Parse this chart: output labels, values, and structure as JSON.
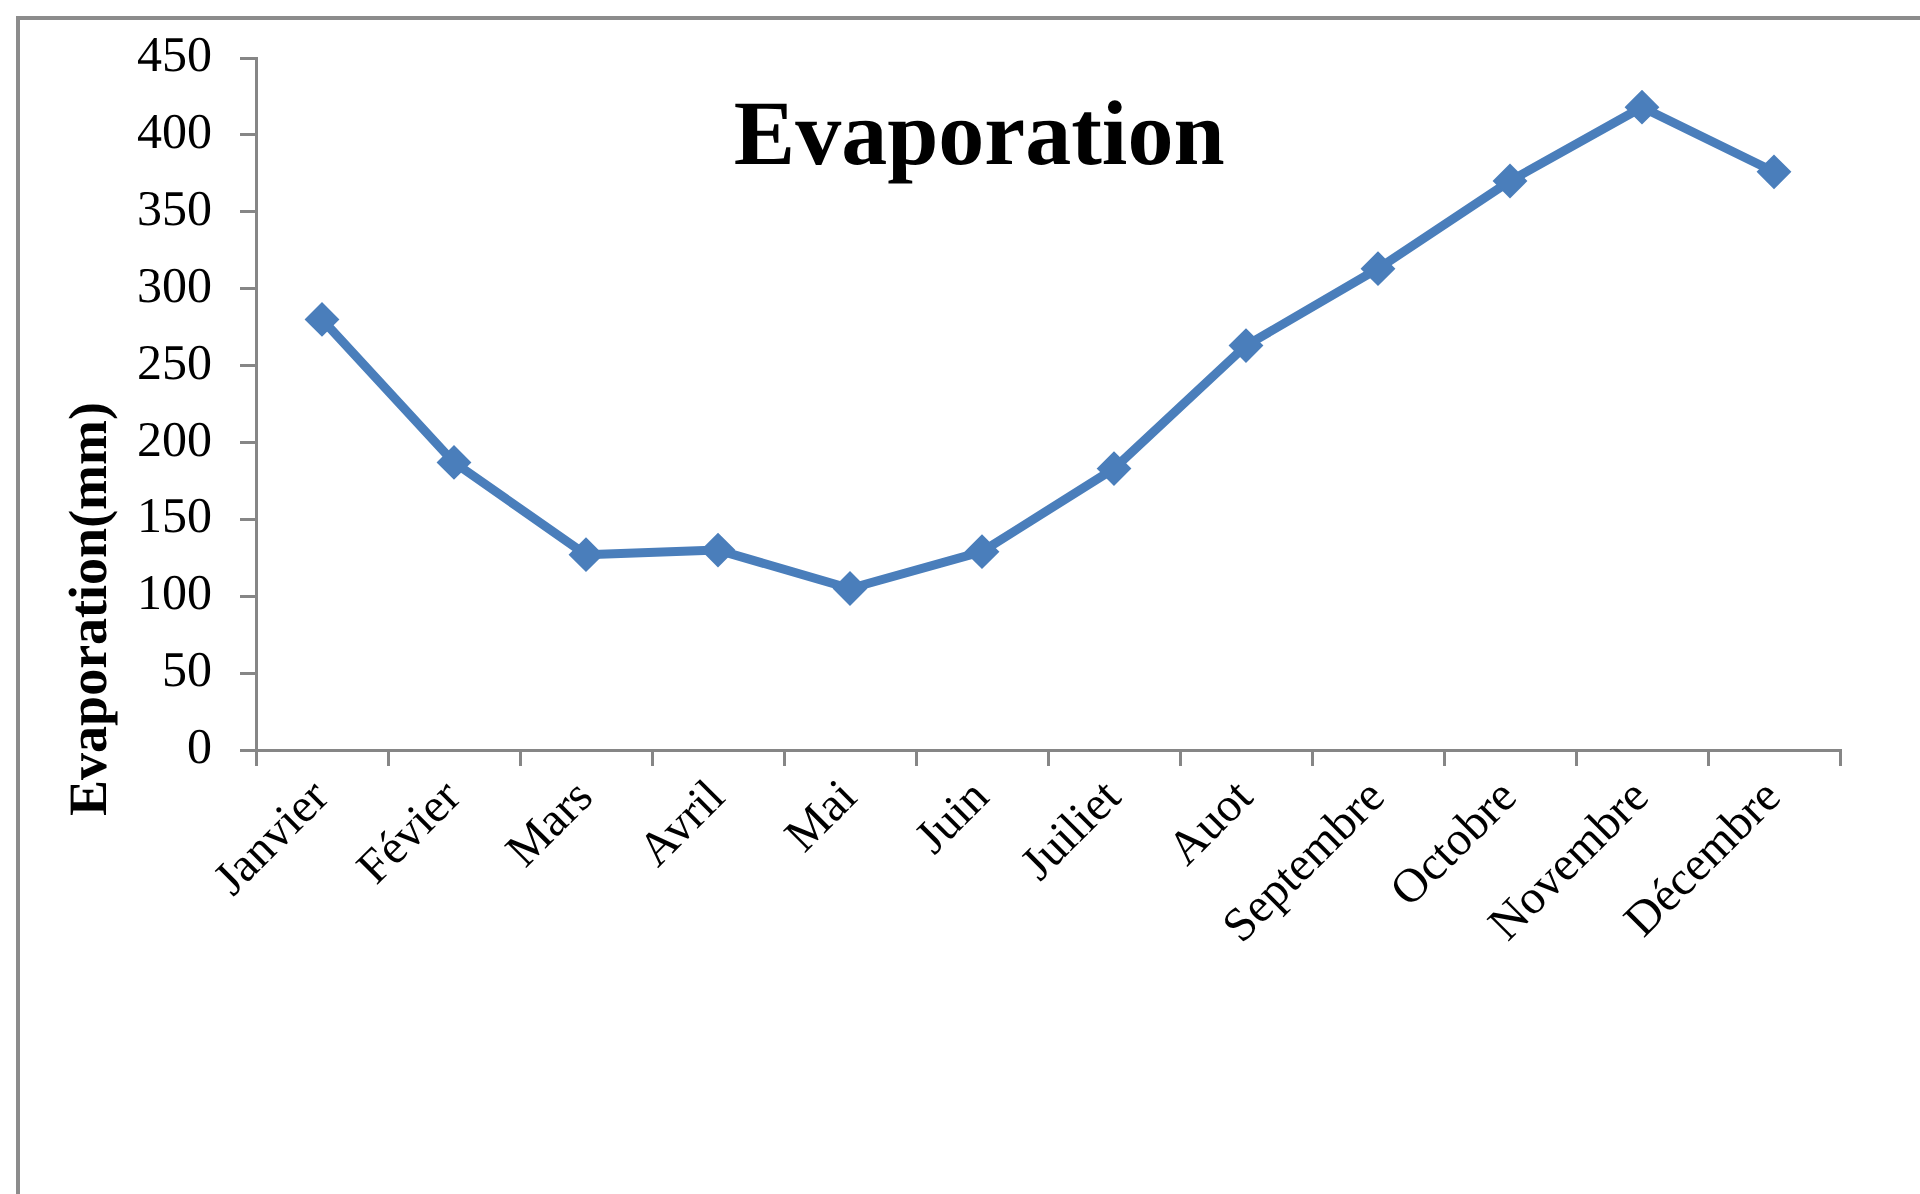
{
  "chart_data": {
    "type": "line",
    "title": "Evaporation",
    "ylabel": "Evaporation(mm)",
    "categories": [
      "Janvier",
      "Févier",
      "Mars",
      "Avril",
      "Mai",
      "Juin",
      "Juiliet",
      "Auot",
      "Septembre",
      "Octobre",
      "Novembre",
      "Décembre"
    ],
    "series": [
      {
        "color": "#4a7ebb",
        "values": [
          280,
          187,
          127,
          130,
          105,
          129,
          183,
          263,
          313,
          370,
          418,
          376
        ]
      }
    ],
    "ylim": [
      0,
      450
    ],
    "yticks": [
      0,
      50,
      100,
      150,
      200,
      250,
      300,
      350,
      400,
      450
    ],
    "grid": false,
    "legend": false,
    "marker": "diamond",
    "line_style": "solid"
  }
}
